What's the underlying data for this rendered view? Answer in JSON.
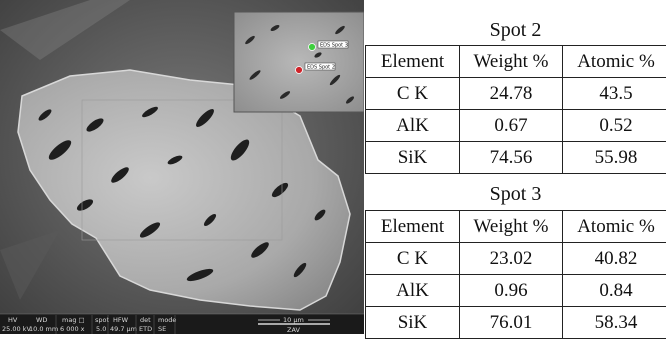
{
  "micrograph": {
    "info_bar": {
      "headers": [
        "HV",
        "WD",
        "mag □",
        "spot",
        "HFW",
        "det",
        "mode"
      ],
      "values": [
        "25.00 kV",
        "10.0 mm",
        "6 000 x",
        "5.0",
        "49.7 µm",
        "ETD",
        "SE"
      ],
      "scale_bar": "10 µm",
      "label": "ZAV"
    },
    "inset": {
      "markers": [
        {
          "label": "EDS Spot 3",
          "color": "#3ecf3e"
        },
        {
          "label": "EDS Spot 2",
          "color": "#d0242a"
        }
      ]
    }
  },
  "tables": [
    {
      "title": "Spot 2",
      "headers": [
        "Element",
        "Weight %",
        "Atomic %"
      ],
      "rows": [
        [
          "C K",
          "24.78",
          "43.5"
        ],
        [
          "AlK",
          "0.67",
          "0.52"
        ],
        [
          "SiK",
          "74.56",
          "55.98"
        ]
      ]
    },
    {
      "title": "Spot 3",
      "headers": [
        "Element",
        "Weight %",
        "Atomic %"
      ],
      "rows": [
        [
          "C K",
          "23.02",
          "40.82"
        ],
        [
          "AlK",
          "0.96",
          "0.84"
        ],
        [
          "SiK",
          "76.01",
          "58.34"
        ]
      ]
    }
  ]
}
